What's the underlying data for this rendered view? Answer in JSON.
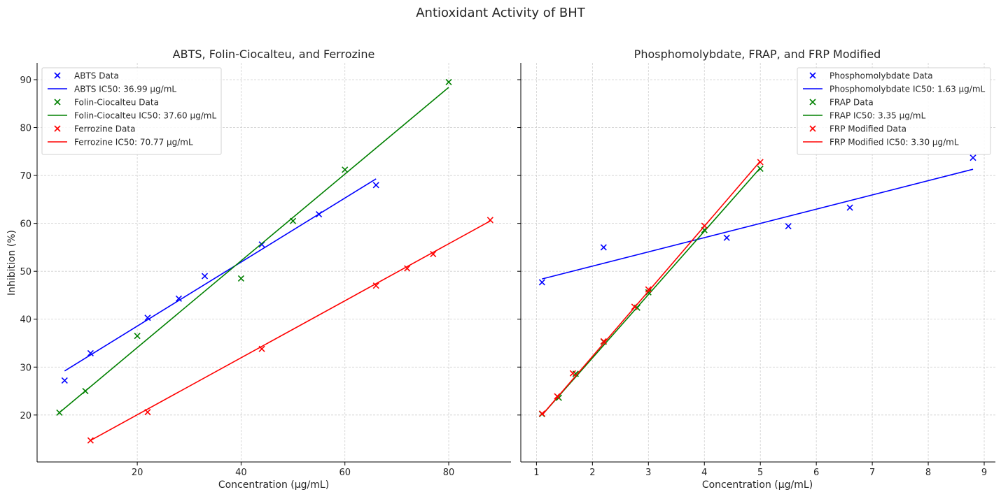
{
  "figure": {
    "suptitle": "Antioxidant Activity of BHT"
  },
  "chart_data": [
    {
      "type": "scatter",
      "title": "ABTS, Folin-Ciocalteu, and Ferrozine",
      "xlabel": "Concentration (µg/mL)",
      "ylabel": "Inhibition (%)",
      "xlim": [
        0.7,
        92
      ],
      "ylim": [
        10.2,
        93.5
      ],
      "xticks": [
        20,
        40,
        60,
        80
      ],
      "yticks": [
        20,
        30,
        40,
        50,
        60,
        70,
        80,
        90
      ],
      "grid": true,
      "legend_position": "top-left",
      "series": [
        {
          "name": "ABTS Data",
          "kind": "points",
          "color": "#0000ff",
          "x": [
            6,
            11,
            22,
            28,
            33,
            44,
            55,
            66
          ],
          "y": [
            27.2,
            32.9,
            40.3,
            44.3,
            49.0,
            55.6,
            61.9,
            68.0
          ]
        },
        {
          "name": "ABTS IC50: 36.99 µg/mL",
          "kind": "line",
          "color": "#0000ff",
          "x": [
            6,
            66
          ],
          "y": [
            29.2,
            69.3
          ]
        },
        {
          "name": "Folin-Ciocalteu Data",
          "kind": "points",
          "color": "#008000",
          "x": [
            5,
            10,
            20,
            40,
            50,
            60,
            80
          ],
          "y": [
            20.5,
            25.0,
            36.5,
            48.5,
            60.5,
            71.2,
            89.5
          ]
        },
        {
          "name": "Folin-Ciocalteu IC50: 37.60 µg/mL",
          "kind": "line",
          "color": "#008000",
          "x": [
            5,
            80
          ],
          "y": [
            20.5,
            88.4
          ]
        },
        {
          "name": "Ferrozine Data",
          "kind": "points",
          "color": "#ff0000",
          "x": [
            11,
            22,
            44,
            66,
            72,
            77,
            88
          ],
          "y": [
            14.7,
            20.6,
            33.8,
            47.0,
            50.6,
            53.6,
            60.7
          ]
        },
        {
          "name": "Ferrozine IC50: 70.77 µg/mL",
          "kind": "line",
          "color": "#ff0000",
          "x": [
            11,
            88
          ],
          "y": [
            14.7,
            60.5
          ]
        }
      ]
    },
    {
      "type": "scatter",
      "title": "Phosphomolybdate, FRAP, and FRP Modified",
      "xlabel": "Concentration (µg/mL)",
      "ylabel": "",
      "xlim": [
        0.72,
        9.2
      ],
      "ylim": [
        10.2,
        93.5
      ],
      "xticks": [
        1,
        2,
        3,
        4,
        5,
        6,
        7,
        8,
        9
      ],
      "yticks": [
        20,
        30,
        40,
        50,
        60,
        70,
        80,
        90
      ],
      "grid": true,
      "legend_position": "top-right",
      "series": [
        {
          "name": "Phosphomolybdate Data",
          "kind": "points",
          "color": "#0000ff",
          "x": [
            1.1,
            2.2,
            4.4,
            5.5,
            6.6,
            8.8
          ],
          "y": [
            47.7,
            55.0,
            57.0,
            59.4,
            63.3,
            73.7
          ]
        },
        {
          "name": "Phosphomolybdate IC50: 1.63 µg/mL",
          "kind": "line",
          "color": "#0000ff",
          "x": [
            1.1,
            8.8
          ],
          "y": [
            48.4,
            71.3
          ]
        },
        {
          "name": "FRAP Data",
          "kind": "points",
          "color": "#008000",
          "x": [
            1.1,
            1.4,
            1.7,
            2.2,
            2.8,
            3.0,
            4.0,
            5.0
          ],
          "y": [
            20.2,
            23.6,
            28.6,
            35.3,
            42.4,
            45.6,
            58.6,
            71.4
          ]
        },
        {
          "name": "FRAP IC50: 3.35 µg/mL",
          "kind": "line",
          "color": "#008000",
          "x": [
            1.1,
            5.0
          ],
          "y": [
            20.0,
            71.6
          ]
        },
        {
          "name": "FRP Modified Data",
          "kind": "points",
          "color": "#ff0000",
          "x": [
            1.1,
            1.37,
            1.65,
            2.2,
            2.75,
            3.0,
            4.0,
            5.0
          ],
          "y": [
            20.3,
            23.9,
            28.7,
            35.4,
            42.6,
            46.2,
            59.5,
            72.8
          ]
        },
        {
          "name": "FRP Modified IC50: 3.30 µg/mL",
          "kind": "line",
          "color": "#ff0000",
          "x": [
            1.1,
            5.0
          ],
          "y": [
            20.0,
            73.0
          ]
        }
      ]
    }
  ]
}
